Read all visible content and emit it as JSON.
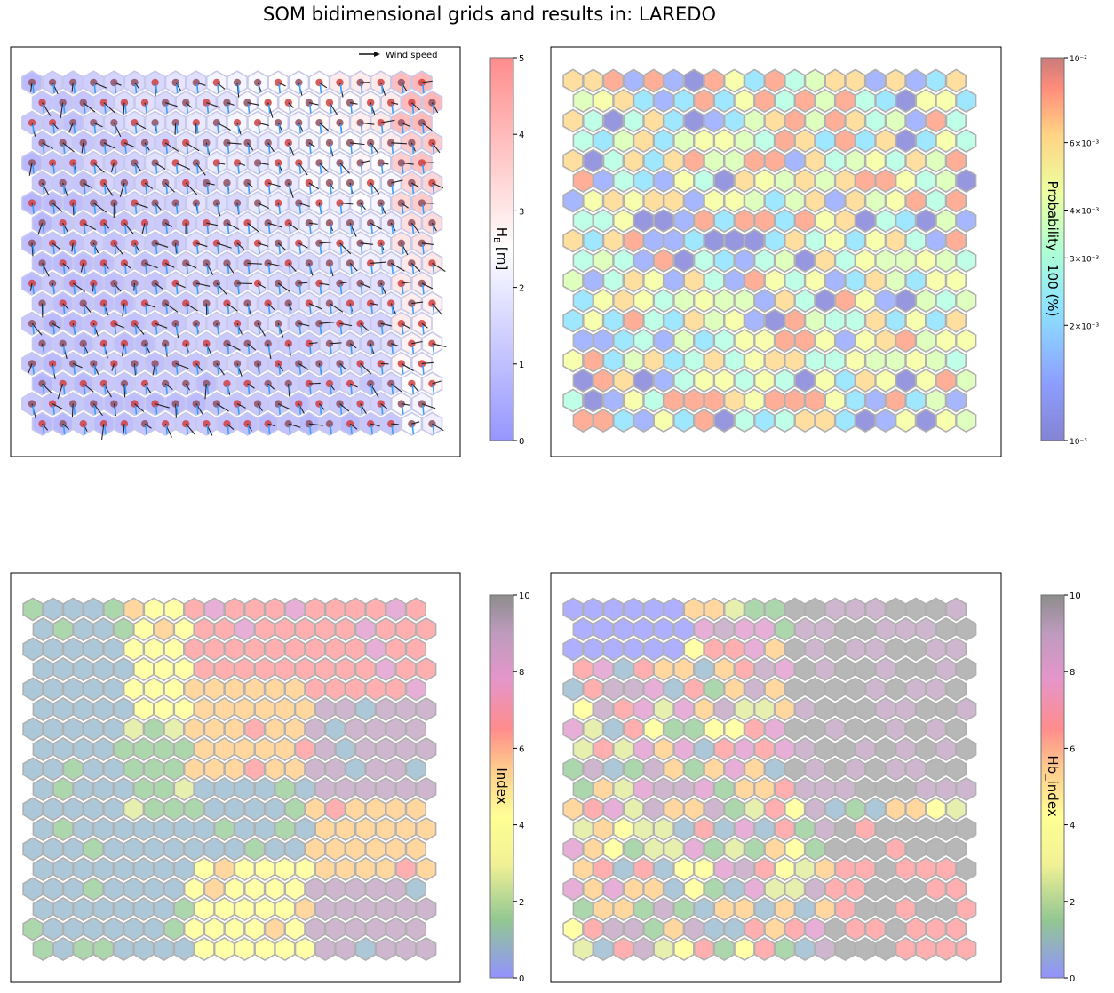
{
  "title": "SOM bidimensional grids and results in: LAREDO",
  "chart_data": [
    {
      "type": "heatmap",
      "grid": "hexagonal",
      "rows": 18,
      "cols": 20,
      "quiver_key": "Wind speed",
      "colorbar": {
        "label": "H_B [m]",
        "label_main": "H",
        "label_sub": "B",
        "label_unit": "[m]",
        "range": [
          0,
          5
        ],
        "ticks": [
          "0",
          "1",
          "2",
          "3",
          "4",
          "5"
        ],
        "colormap": "bwr"
      },
      "values_hint": "blue (~0.5 m) across most of grid; white/pink (~3-4 m) toward top-right and right edge"
    },
    {
      "type": "heatmap",
      "grid": "hexagonal",
      "rows": 18,
      "cols": 20,
      "colorbar": {
        "label": "Probability · 100 (%)",
        "scale": "log",
        "range": [
          0.001,
          0.01
        ],
        "ticks": [
          "10⁻³",
          "2×10⁻³",
          "3×10⁻³",
          "4×10⁻³",
          "6×10⁻³",
          "10⁻²"
        ],
        "colormap": "jet"
      }
    },
    {
      "type": "heatmap",
      "grid": "hexagonal",
      "rows": 18,
      "cols": 20,
      "colorbar": {
        "label": "Index",
        "range": [
          0,
          10
        ],
        "ticks": [
          "0",
          "2",
          "4",
          "6",
          "8",
          "10"
        ],
        "colormap": "discrete: blue, green, yellow, orange, red, purple, grey"
      }
    },
    {
      "type": "heatmap",
      "grid": "hexagonal",
      "rows": 18,
      "cols": 20,
      "colorbar": {
        "label": "Hb_index",
        "range": [
          0,
          10
        ],
        "ticks": [
          "0",
          "2",
          "4",
          "6",
          "8",
          "10"
        ],
        "colormap": "discrete: blue, green, yellow, orange, red, purple, grey"
      }
    }
  ]
}
